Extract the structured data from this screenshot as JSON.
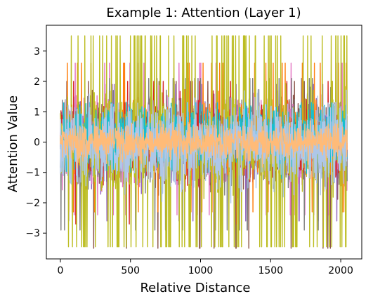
{
  "chart_data": {
    "type": "line",
    "title": "Example 1: Attention (Layer 1)",
    "xlabel": "Relative Distance",
    "ylabel": "Attention Value",
    "xlim": [
      -100,
      2150
    ],
    "ylim": [
      -3.85,
      3.85
    ],
    "x_ticks": [
      0,
      500,
      1000,
      1500,
      2000
    ],
    "y_ticks": [
      -3,
      -2,
      -1,
      0,
      1,
      2,
      3
    ],
    "x_tick_labels": [
      "0",
      "500",
      "1000",
      "1500",
      "2000"
    ],
    "y_tick_labels": [
      "−3",
      "−2",
      "−1",
      "0",
      "1",
      "2",
      "3"
    ],
    "x_range": [
      0,
      2047
    ],
    "grid": false,
    "legend": "none",
    "series": [
      {
        "color": "#8c564b",
        "center": 0.0,
        "spread": 0.9,
        "max": 2.0,
        "min": -3.5,
        "spikes": 0.004
      },
      {
        "color": "#9467bd",
        "center": 0.05,
        "spread": 0.9,
        "max": 1.9,
        "min": -2.6,
        "spikes": 0.004
      },
      {
        "color": "#e377c2",
        "center": 0.05,
        "spread": 0.9,
        "max": 2.6,
        "min": -2.4,
        "spikes": 0.003
      },
      {
        "color": "#7f7f7f",
        "center": 0.0,
        "spread": 0.9,
        "max": 2.1,
        "min": -2.9,
        "spikes": 0.005
      },
      {
        "color": "#ff7f0e",
        "center": 0.1,
        "spread": 0.8,
        "max": 2.6,
        "min": -2.3,
        "spikes": 0.004
      },
      {
        "color": "#d62728",
        "center": 0.0,
        "spread": 0.8,
        "max": 2.0,
        "min": -2.7,
        "spikes": 0.002
      },
      {
        "color": "#bcbd22",
        "center": 0.0,
        "spread": 1.0,
        "max": 3.5,
        "min": -3.45,
        "spikes": 0.02
      },
      {
        "color": "#17becf",
        "center": 0.2,
        "spread": 0.7,
        "max": 1.3,
        "min": -1.2,
        "spikes": 0.0
      },
      {
        "color": "#aec7e8",
        "center": -0.1,
        "spread": 0.95,
        "max": 1.9,
        "min": -2.3,
        "spikes": 0.0
      },
      {
        "color": "#ffbb78",
        "center": 0.0,
        "spread": 0.4,
        "max": 0.9,
        "min": -1.0,
        "spikes": 0.0
      }
    ]
  }
}
